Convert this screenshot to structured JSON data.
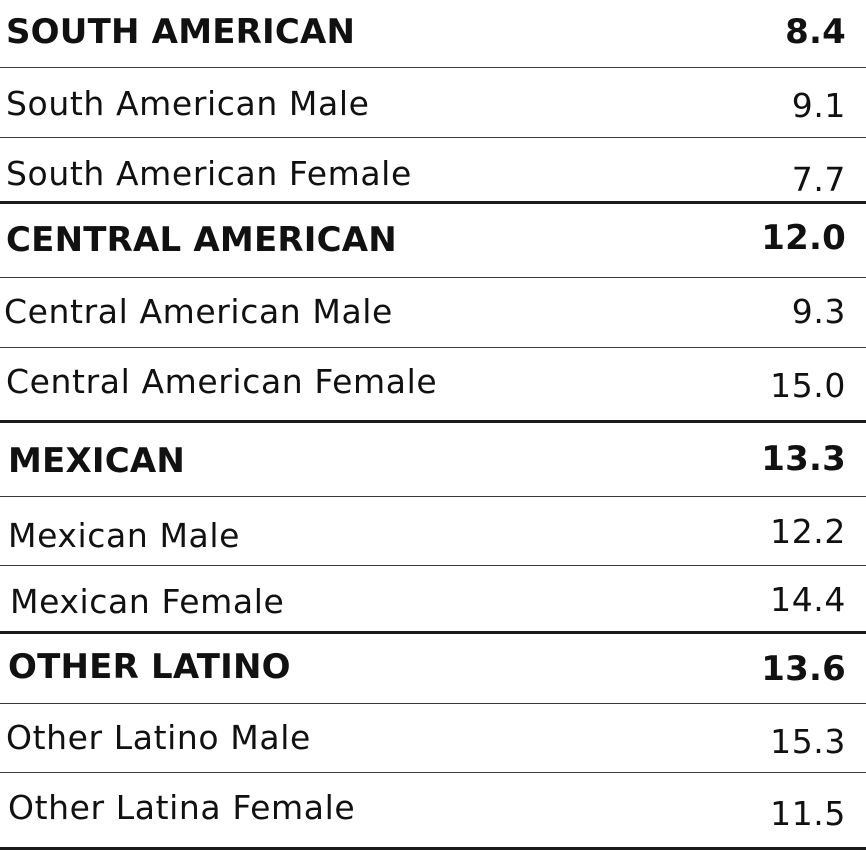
{
  "groups": [
    {
      "name": "SOUTH AMERICAN",
      "value": "8.4",
      "rows": [
        {
          "label": "South American Male",
          "value": "9.1"
        },
        {
          "label": "South American Female",
          "value": "7.7"
        }
      ]
    },
    {
      "name": "CENTRAL AMERICAN",
      "value": "12.0",
      "rows": [
        {
          "label": "Central American Male",
          "value": "9.3"
        },
        {
          "label": "Central American Female",
          "value": "15.0"
        }
      ]
    },
    {
      "name": "MEXICAN",
      "value": "13.3",
      "rows": [
        {
          "label": "Mexican Male",
          "value": "12.2"
        },
        {
          "label": "Mexican Female",
          "value": "14.4"
        }
      ]
    },
    {
      "name": "OTHER LATINO",
      "value": "13.6",
      "rows": [
        {
          "label": "Other Latino Male",
          "value": "15.3"
        },
        {
          "label": "Other Latina Female",
          "value": "11.5"
        }
      ]
    }
  ]
}
